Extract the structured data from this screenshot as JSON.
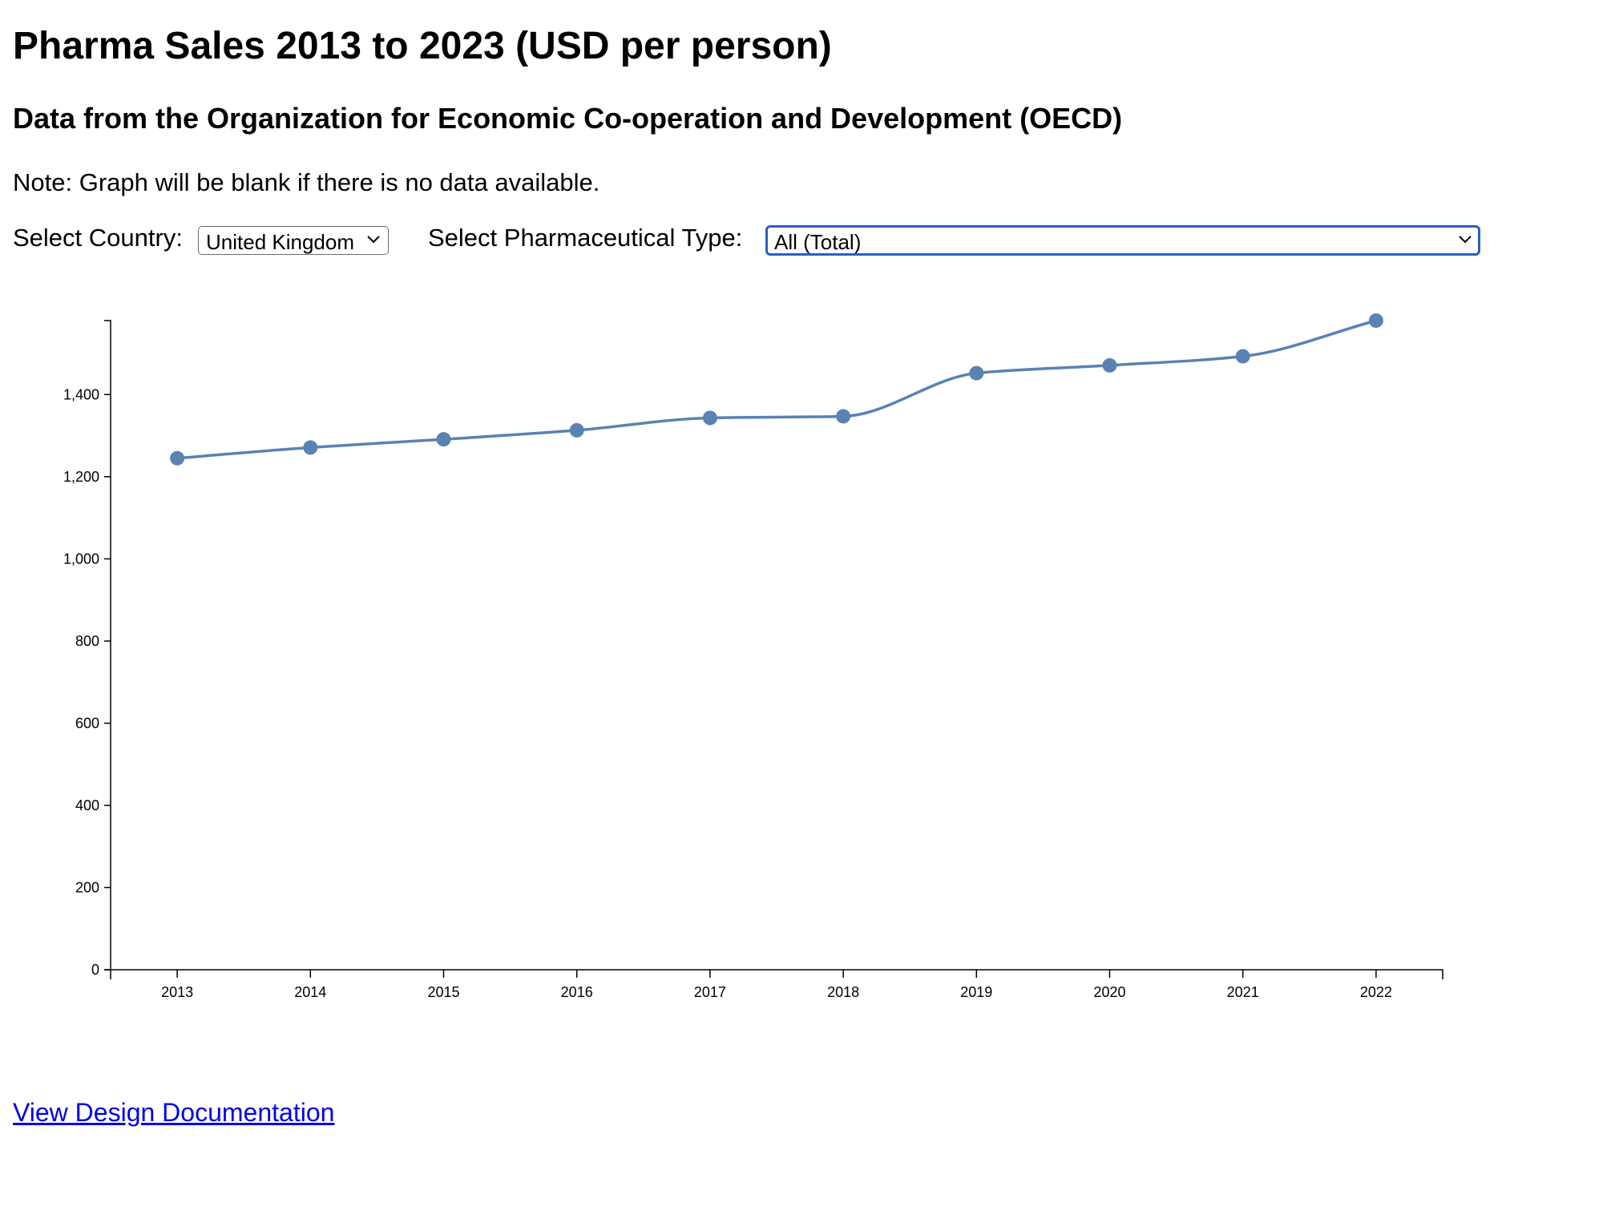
{
  "header": {
    "title": "Pharma Sales 2013 to 2023 (USD per person)",
    "subtitle": "Data from the Organization for Economic Co-operation and Development (OECD)",
    "note": "Note: Graph will be blank if there is no data available."
  },
  "controls": {
    "country_label": "Select Country:",
    "country_value": "United Kingdom",
    "type_label": "Select Pharmaceutical Type:",
    "type_value": "All (Total)"
  },
  "footer": {
    "doc_link": "View Design Documentation"
  },
  "colors": {
    "series": "#5a82b3",
    "axis": "#000000",
    "link": "#0000ee",
    "focus": "#2c5ec4"
  },
  "chart_data": {
    "type": "line",
    "title": "",
    "xlabel": "",
    "ylabel": "",
    "x": [
      "2013",
      "2014",
      "2015",
      "2016",
      "2017",
      "2018",
      "2019",
      "2020",
      "2021",
      "2022"
    ],
    "series": [
      {
        "values": [
          1245,
          1271,
          1291,
          1313,
          1343,
          1347,
          1452,
          1471,
          1493,
          1580
        ]
      }
    ],
    "ylim": [
      0,
      1580
    ],
    "yticks": [
      0,
      200,
      400,
      600,
      800,
      1000,
      1200,
      1400
    ],
    "ytick_labels": [
      "0",
      "200",
      "400",
      "600",
      "800",
      "1,000",
      "1,200",
      "1,400"
    ],
    "curve": "smooth",
    "markers": true,
    "grid": false,
    "legend": "none"
  }
}
